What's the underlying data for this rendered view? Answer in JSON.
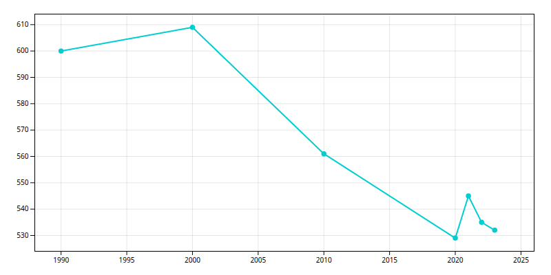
{
  "chart_data": {
    "type": "line",
    "x": [
      1990,
      2000,
      2010,
      2020,
      2021,
      2022,
      2023
    ],
    "values": [
      600,
      609,
      561,
      529,
      545,
      535,
      532
    ],
    "color": "#00CED1",
    "marker": "circle",
    "xlim": [
      1988,
      2026
    ],
    "ylim": [
      524,
      614
    ],
    "xticks": [
      1990,
      1995,
      2000,
      2005,
      2010,
      2015,
      2020,
      2025
    ],
    "yticks": [
      530,
      540,
      550,
      560,
      570,
      580,
      590,
      600,
      610
    ],
    "grid": true
  }
}
